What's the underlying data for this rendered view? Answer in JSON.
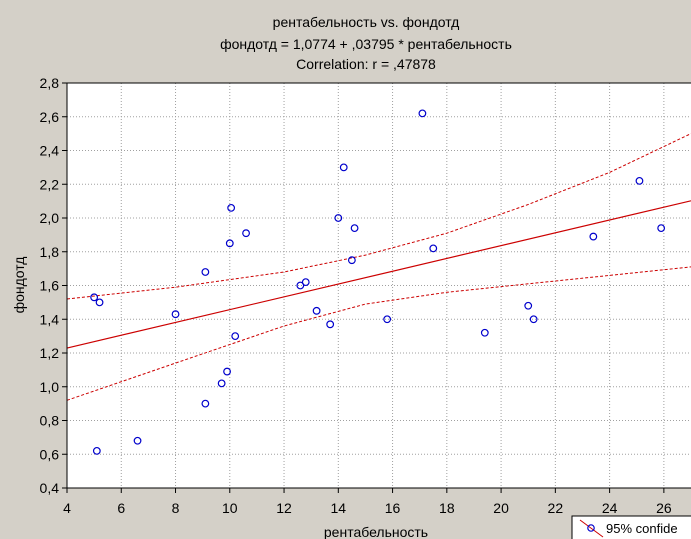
{
  "chart_data": {
    "type": "scatter",
    "title": "рентабельность vs. фондотд",
    "subtitle": "фондотд  = 1,0774 + ,03795 * рентабельность",
    "correlation": "Correlation: r = ,47878",
    "xlabel": "рентабельность",
    "ylabel": "фондотд",
    "xlim": [
      4,
      27
    ],
    "ylim": [
      0.4,
      2.8
    ],
    "x_ticks": [
      "4",
      "6",
      "8",
      "10",
      "12",
      "14",
      "16",
      "18",
      "20",
      "22",
      "24",
      "26"
    ],
    "y_ticks": [
      "0,4",
      "0,6",
      "0,8",
      "1,0",
      "1,2",
      "1,4",
      "1,6",
      "1,8",
      "2,0",
      "2,2",
      "2,4",
      "2,6",
      "2,8"
    ],
    "grid": true,
    "legend": {
      "label": "95% confide",
      "placement": "bottom-right"
    },
    "regression": {
      "intercept": 1.0774,
      "slope": 0.03795
    },
    "confidence_band": {
      "upper": [
        [
          4,
          1.52
        ],
        [
          8,
          1.59
        ],
        [
          12,
          1.68
        ],
        [
          15,
          1.78
        ],
        [
          18,
          1.91
        ],
        [
          21,
          2.08
        ],
        [
          24,
          2.27
        ],
        [
          27,
          2.5
        ]
      ],
      "lower": [
        [
          4,
          0.92
        ],
        [
          8,
          1.14
        ],
        [
          12,
          1.36
        ],
        [
          15,
          1.49
        ],
        [
          18,
          1.56
        ],
        [
          21,
          1.61
        ],
        [
          24,
          1.66
        ],
        [
          27,
          1.71
        ]
      ]
    },
    "points": [
      {
        "x": 5.0,
        "y": 1.53
      },
      {
        "x": 5.2,
        "y": 1.5
      },
      {
        "x": 5.1,
        "y": 0.62
      },
      {
        "x": 6.6,
        "y": 0.68
      },
      {
        "x": 8.0,
        "y": 1.43
      },
      {
        "x": 9.1,
        "y": 1.68
      },
      {
        "x": 9.1,
        "y": 0.9
      },
      {
        "x": 9.7,
        "y": 1.02
      },
      {
        "x": 9.9,
        "y": 1.09
      },
      {
        "x": 10.0,
        "y": 1.85
      },
      {
        "x": 10.05,
        "y": 2.06
      },
      {
        "x": 10.2,
        "y": 1.3
      },
      {
        "x": 10.6,
        "y": 1.91
      },
      {
        "x": 12.6,
        "y": 1.6
      },
      {
        "x": 12.8,
        "y": 1.62
      },
      {
        "x": 13.2,
        "y": 1.45
      },
      {
        "x": 13.7,
        "y": 1.37
      },
      {
        "x": 14.0,
        "y": 2.0
      },
      {
        "x": 14.2,
        "y": 2.3
      },
      {
        "x": 14.5,
        "y": 1.75
      },
      {
        "x": 14.6,
        "y": 1.94
      },
      {
        "x": 15.8,
        "y": 1.4
      },
      {
        "x": 17.1,
        "y": 2.62
      },
      {
        "x": 17.5,
        "y": 1.82
      },
      {
        "x": 19.4,
        "y": 1.32
      },
      {
        "x": 21.0,
        "y": 1.48
      },
      {
        "x": 21.2,
        "y": 1.4
      },
      {
        "x": 23.4,
        "y": 1.89
      },
      {
        "x": 25.1,
        "y": 2.22
      },
      {
        "x": 25.9,
        "y": 1.94
      }
    ],
    "colors": {
      "background": "#d4d0c8",
      "plot_background": "#ffffff",
      "points": "#0000cc",
      "fit_line": "#cc0000",
      "grid": "#a0a0a0"
    }
  }
}
